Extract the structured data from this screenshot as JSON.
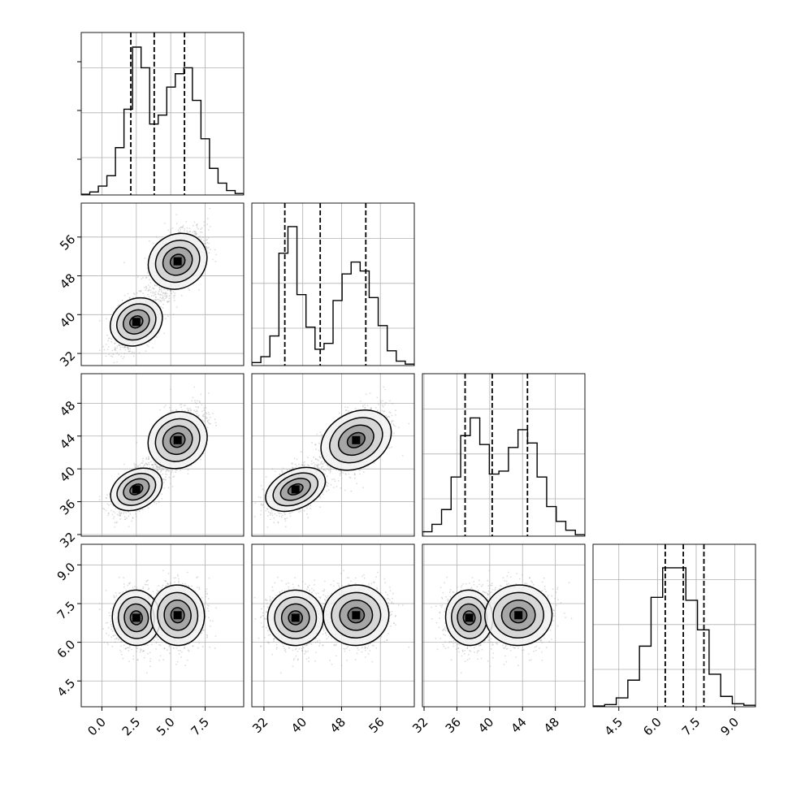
{
  "chart_data": {
    "type": "corner",
    "n_params": 4,
    "grid": true,
    "ranges": [
      [
        -1.5,
        10.3
      ],
      [
        29.5,
        63.0
      ],
      [
        31.8,
        51.6
      ],
      [
        3.5,
        9.8
      ]
    ],
    "x_tick_labels": [
      [
        "0.0",
        "2.5",
        "5.0",
        "7.5"
      ],
      [
        "32",
        "40",
        "48",
        "56"
      ],
      [
        "32",
        "36",
        "40",
        "44",
        "48"
      ],
      [
        "4.5",
        "6.0",
        "7.5",
        "9.0"
      ]
    ],
    "y_tick_labels": [
      [],
      [
        "32",
        "40",
        "48",
        "56"
      ],
      [
        "32",
        "36",
        "40",
        "44",
        "48"
      ],
      [
        "4.5",
        "6.0",
        "7.5",
        "9.0"
      ]
    ],
    "quantiles": [
      [
        2.1,
        3.8,
        6.0
      ],
      [
        36.3,
        43.6,
        53.0
      ],
      [
        37.0,
        40.3,
        44.6
      ],
      [
        6.3,
        7.0,
        7.8
      ]
    ],
    "histograms": [
      {
        "values": [
          0.005,
          0.02,
          0.06,
          0.13,
          0.32,
          0.58,
          1.0,
          0.86,
          0.48,
          0.54,
          0.73,
          0.82,
          0.86,
          0.64,
          0.38,
          0.18,
          0.08,
          0.03,
          0.01
        ]
      },
      {
        "values": [
          0.02,
          0.06,
          0.2,
          0.76,
          0.94,
          0.48,
          0.26,
          0.11,
          0.15,
          0.44,
          0.62,
          0.7,
          0.64,
          0.46,
          0.27,
          0.1,
          0.03,
          0.01
        ]
      },
      {
        "values": [
          0.03,
          0.08,
          0.18,
          0.4,
          0.68,
          0.8,
          0.62,
          0.42,
          0.44,
          0.6,
          0.72,
          0.63,
          0.4,
          0.2,
          0.1,
          0.04,
          0.01
        ]
      },
      {
        "values": [
          0.005,
          0.015,
          0.06,
          0.18,
          0.41,
          0.74,
          0.94,
          0.94,
          0.72,
          0.52,
          0.22,
          0.07,
          0.02,
          0.01
        ]
      }
    ],
    "mixture_components": [
      {
        "weight": 0.5,
        "mean": [
          2.5,
          38.5,
          37.5,
          6.95
        ],
        "sd": [
          0.85,
          2.8,
          1.4,
          0.55
        ]
      },
      {
        "weight": 0.5,
        "mean": [
          5.5,
          51.0,
          43.5,
          7.05
        ],
        "sd": [
          0.95,
          3.3,
          2.0,
          0.6
        ]
      }
    ],
    "contour_levels": [
      0.5,
      1.0,
      1.5,
      2.0
    ]
  }
}
